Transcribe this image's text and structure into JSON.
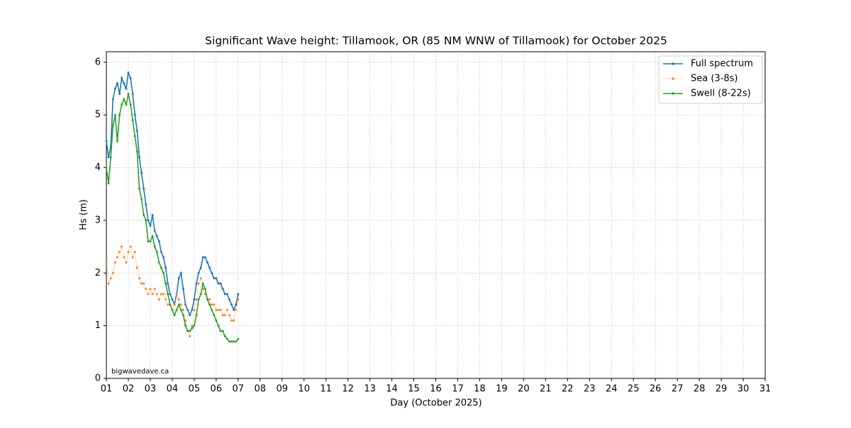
{
  "chart_data": {
    "type": "line",
    "title": "Significant Wave height: Tillamook, OR (85 NM WNW of Tillamook) for October 2025",
    "xlabel": "Day (October 2025)",
    "ylabel": "Hs (m)",
    "annotation": "bigwavedave.ca",
    "x": [
      1,
      1.1,
      1.2,
      1.3,
      1.4,
      1.5,
      1.6,
      1.7,
      1.8,
      1.9,
      2,
      2.1,
      2.2,
      2.3,
      2.4,
      2.5,
      2.6,
      2.7,
      2.8,
      2.9,
      3,
      3.1,
      3.2,
      3.3,
      3.4,
      3.5,
      3.6,
      3.7,
      3.8,
      3.9,
      4,
      4.1,
      4.2,
      4.3,
      4.4,
      4.5,
      4.6,
      4.7,
      4.8,
      4.9,
      5,
      5.1,
      5.2,
      5.3,
      5.4,
      5.5,
      5.6,
      5.7,
      5.8,
      5.9,
      6,
      6.1,
      6.2,
      6.3,
      6.4,
      6.5,
      6.6,
      6.7,
      6.8,
      6.9,
      7
    ],
    "series": [
      {
        "name": "Full spectrum",
        "color": "#1f77b4",
        "linestyle": "solid",
        "values": [
          4.5,
          4.2,
          4.4,
          5.3,
          5.5,
          5.6,
          5.4,
          5.7,
          5.6,
          5.5,
          5.8,
          5.7,
          5.4,
          5.0,
          4.7,
          4.2,
          3.9,
          3.6,
          3.3,
          3.0,
          2.9,
          3.1,
          2.8,
          2.7,
          2.6,
          2.4,
          2.3,
          2.1,
          1.8,
          1.6,
          1.5,
          1.4,
          1.6,
          1.9,
          2.0,
          1.7,
          1.4,
          1.3,
          1.2,
          1.3,
          1.5,
          1.8,
          2.0,
          2.1,
          2.3,
          2.3,
          2.2,
          2.1,
          2.0,
          1.9,
          1.9,
          1.8,
          1.8,
          1.7,
          1.6,
          1.6,
          1.5,
          1.4,
          1.3,
          1.4,
          1.6
        ]
      },
      {
        "name": "Sea (3-8s)",
        "color": "#ff7f0e",
        "linestyle": "dotted",
        "values": [
          2.2,
          1.8,
          1.9,
          2.0,
          2.2,
          2.3,
          2.4,
          2.5,
          2.3,
          2.2,
          2.4,
          2.5,
          2.3,
          2.4,
          2.1,
          1.9,
          1.8,
          1.8,
          1.7,
          1.6,
          1.7,
          1.6,
          1.7,
          1.6,
          1.5,
          1.6,
          1.6,
          1.5,
          1.4,
          1.4,
          1.3,
          1.4,
          1.6,
          1.5,
          1.4,
          1.3,
          1.1,
          0.9,
          0.8,
          1.0,
          1.3,
          1.5,
          1.8,
          1.9,
          1.7,
          1.6,
          1.5,
          1.5,
          1.4,
          1.4,
          1.3,
          1.3,
          1.3,
          1.2,
          1.2,
          1.3,
          1.2,
          1.1,
          1.1,
          1.3,
          1.5
        ]
      },
      {
        "name": "Swell (8-22s)",
        "color": "#2ca02c",
        "linestyle": "solid",
        "values": [
          4.0,
          3.7,
          4.2,
          4.8,
          5.0,
          4.5,
          5.0,
          5.2,
          5.3,
          5.2,
          5.4,
          5.2,
          4.9,
          4.6,
          4.3,
          3.6,
          3.4,
          3.1,
          3.0,
          2.6,
          2.6,
          2.7,
          2.5,
          2.4,
          2.2,
          2.1,
          2.0,
          1.8,
          1.6,
          1.4,
          1.3,
          1.2,
          1.3,
          1.4,
          1.3,
          1.2,
          1.0,
          0.9,
          0.9,
          0.95,
          1.0,
          1.2,
          1.5,
          1.6,
          1.8,
          1.7,
          1.5,
          1.4,
          1.3,
          1.2,
          1.1,
          1.0,
          0.9,
          0.9,
          0.8,
          0.75,
          0.7,
          0.7,
          0.7,
          0.7,
          0.75
        ]
      }
    ],
    "xlim": [
      1,
      31
    ],
    "xticks": [
      {
        "value": 1,
        "label": "01"
      },
      {
        "value": 2,
        "label": "02"
      },
      {
        "value": 3,
        "label": "03"
      },
      {
        "value": 4,
        "label": "04"
      },
      {
        "value": 5,
        "label": "05"
      },
      {
        "value": 6,
        "label": "06"
      },
      {
        "value": 7,
        "label": "07"
      },
      {
        "value": 8,
        "label": "08"
      },
      {
        "value": 9,
        "label": "09"
      },
      10,
      11,
      12,
      13,
      14,
      15,
      16,
      17,
      18,
      19,
      20,
      21,
      22,
      23,
      24,
      25,
      26,
      27,
      28,
      29,
      30,
      31
    ],
    "ylim": [
      0,
      6.2
    ],
    "yticks": [
      0,
      1,
      2,
      3,
      4,
      5,
      6
    ],
    "grid": true,
    "legend": "upper right"
  }
}
